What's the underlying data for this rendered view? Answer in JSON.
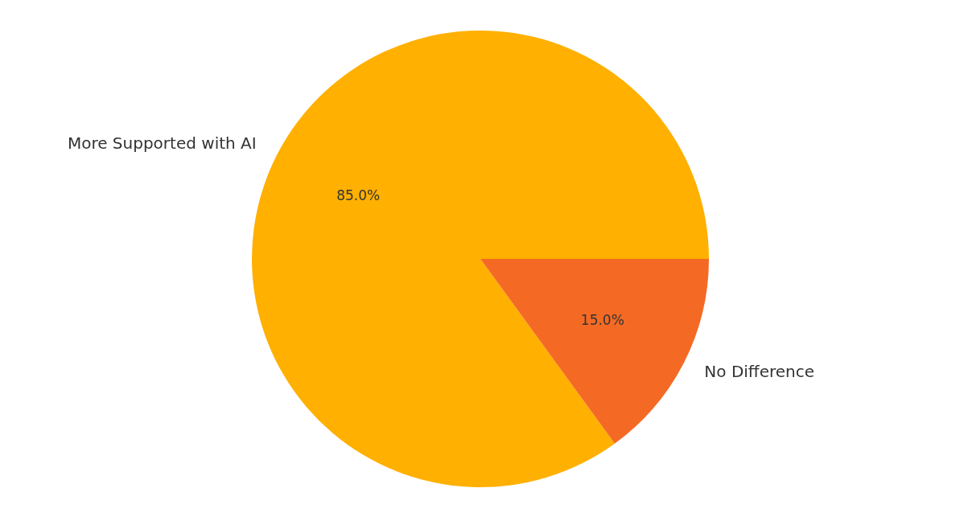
{
  "chart_data": {
    "type": "pie",
    "categories": [
      "More Supported with AI",
      "No Difference"
    ],
    "values": [
      85,
      15
    ],
    "colors": [
      "#ffb000",
      "#f46a24"
    ],
    "value_labels": [
      "85.0%",
      "15.0%"
    ],
    "legend": false
  }
}
